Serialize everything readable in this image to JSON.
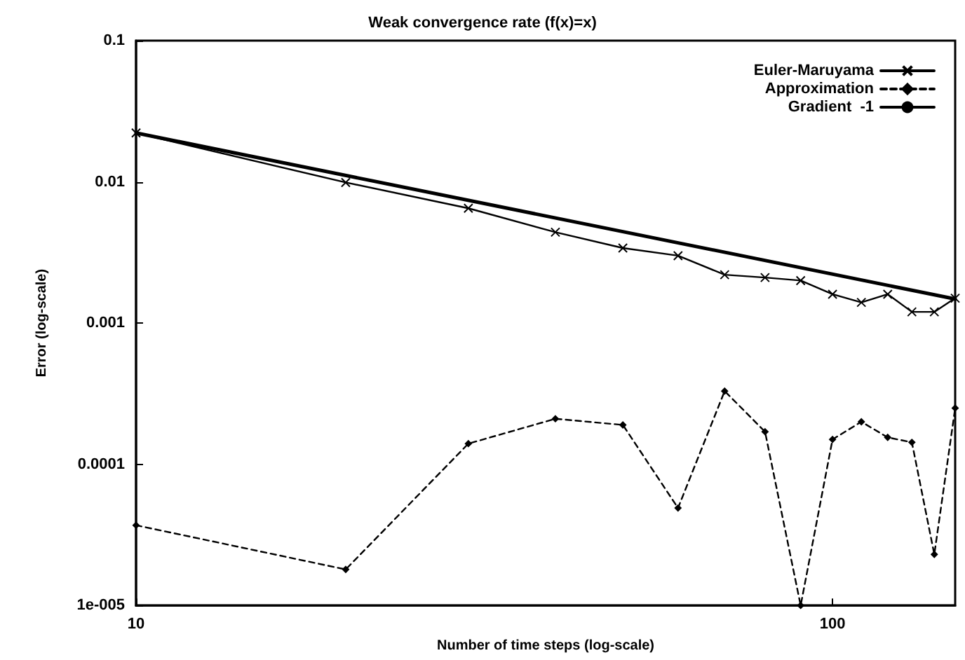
{
  "chart_data": {
    "type": "line",
    "title": "Weak convergence rate (f(x)=x)",
    "xlabel": "Number of time steps (log-scale)",
    "ylabel": "Error (log-scale)",
    "log": "xy",
    "xlim": [
      10,
      150
    ],
    "ylim": [
      1e-05,
      0.1
    ],
    "xticks": [
      10,
      100
    ],
    "yticks": [
      0.1,
      0.01,
      0.001,
      0.0001,
      {
        "value": 1e-05,
        "label": "1e-005"
      }
    ],
    "grid": false,
    "legend": "top right",
    "series": [
      {
        "name": "Euler-Maruyama",
        "color": "#000000",
        "marker": "cross",
        "line_style": "solid",
        "x": [
          10,
          20,
          30,
          40,
          50,
          60,
          70,
          80,
          90,
          100,
          110,
          120,
          130,
          140,
          150
        ],
        "values": [
          0.0222,
          0.0099,
          0.0065,
          0.0044,
          0.0034,
          0.003,
          0.0022,
          0.0021,
          0.002,
          0.0016,
          0.0014,
          0.0016,
          0.0012,
          0.0012,
          0.0015
        ]
      },
      {
        "name": "Approximation",
        "color": "#000000",
        "marker": "diamond",
        "line_style": "dashed",
        "x": [
          10,
          20,
          30,
          40,
          50,
          60,
          70,
          80,
          90,
          100,
          110,
          120,
          130,
          140,
          150
        ],
        "values": [
          3.7e-05,
          1.8e-05,
          0.00014,
          0.00021,
          0.00019,
          4.9e-05,
          0.00033,
          0.00017,
          1e-05,
          0.00015,
          0.0002,
          0.000155,
          0.000143,
          2.3e-05,
          0.00025
        ]
      },
      {
        "name": "Gradient  -1",
        "color": "#000000",
        "marker": "none",
        "line_style": "solid",
        "x": [
          10,
          150
        ],
        "values": [
          0.0222,
          0.00148
        ]
      }
    ]
  }
}
